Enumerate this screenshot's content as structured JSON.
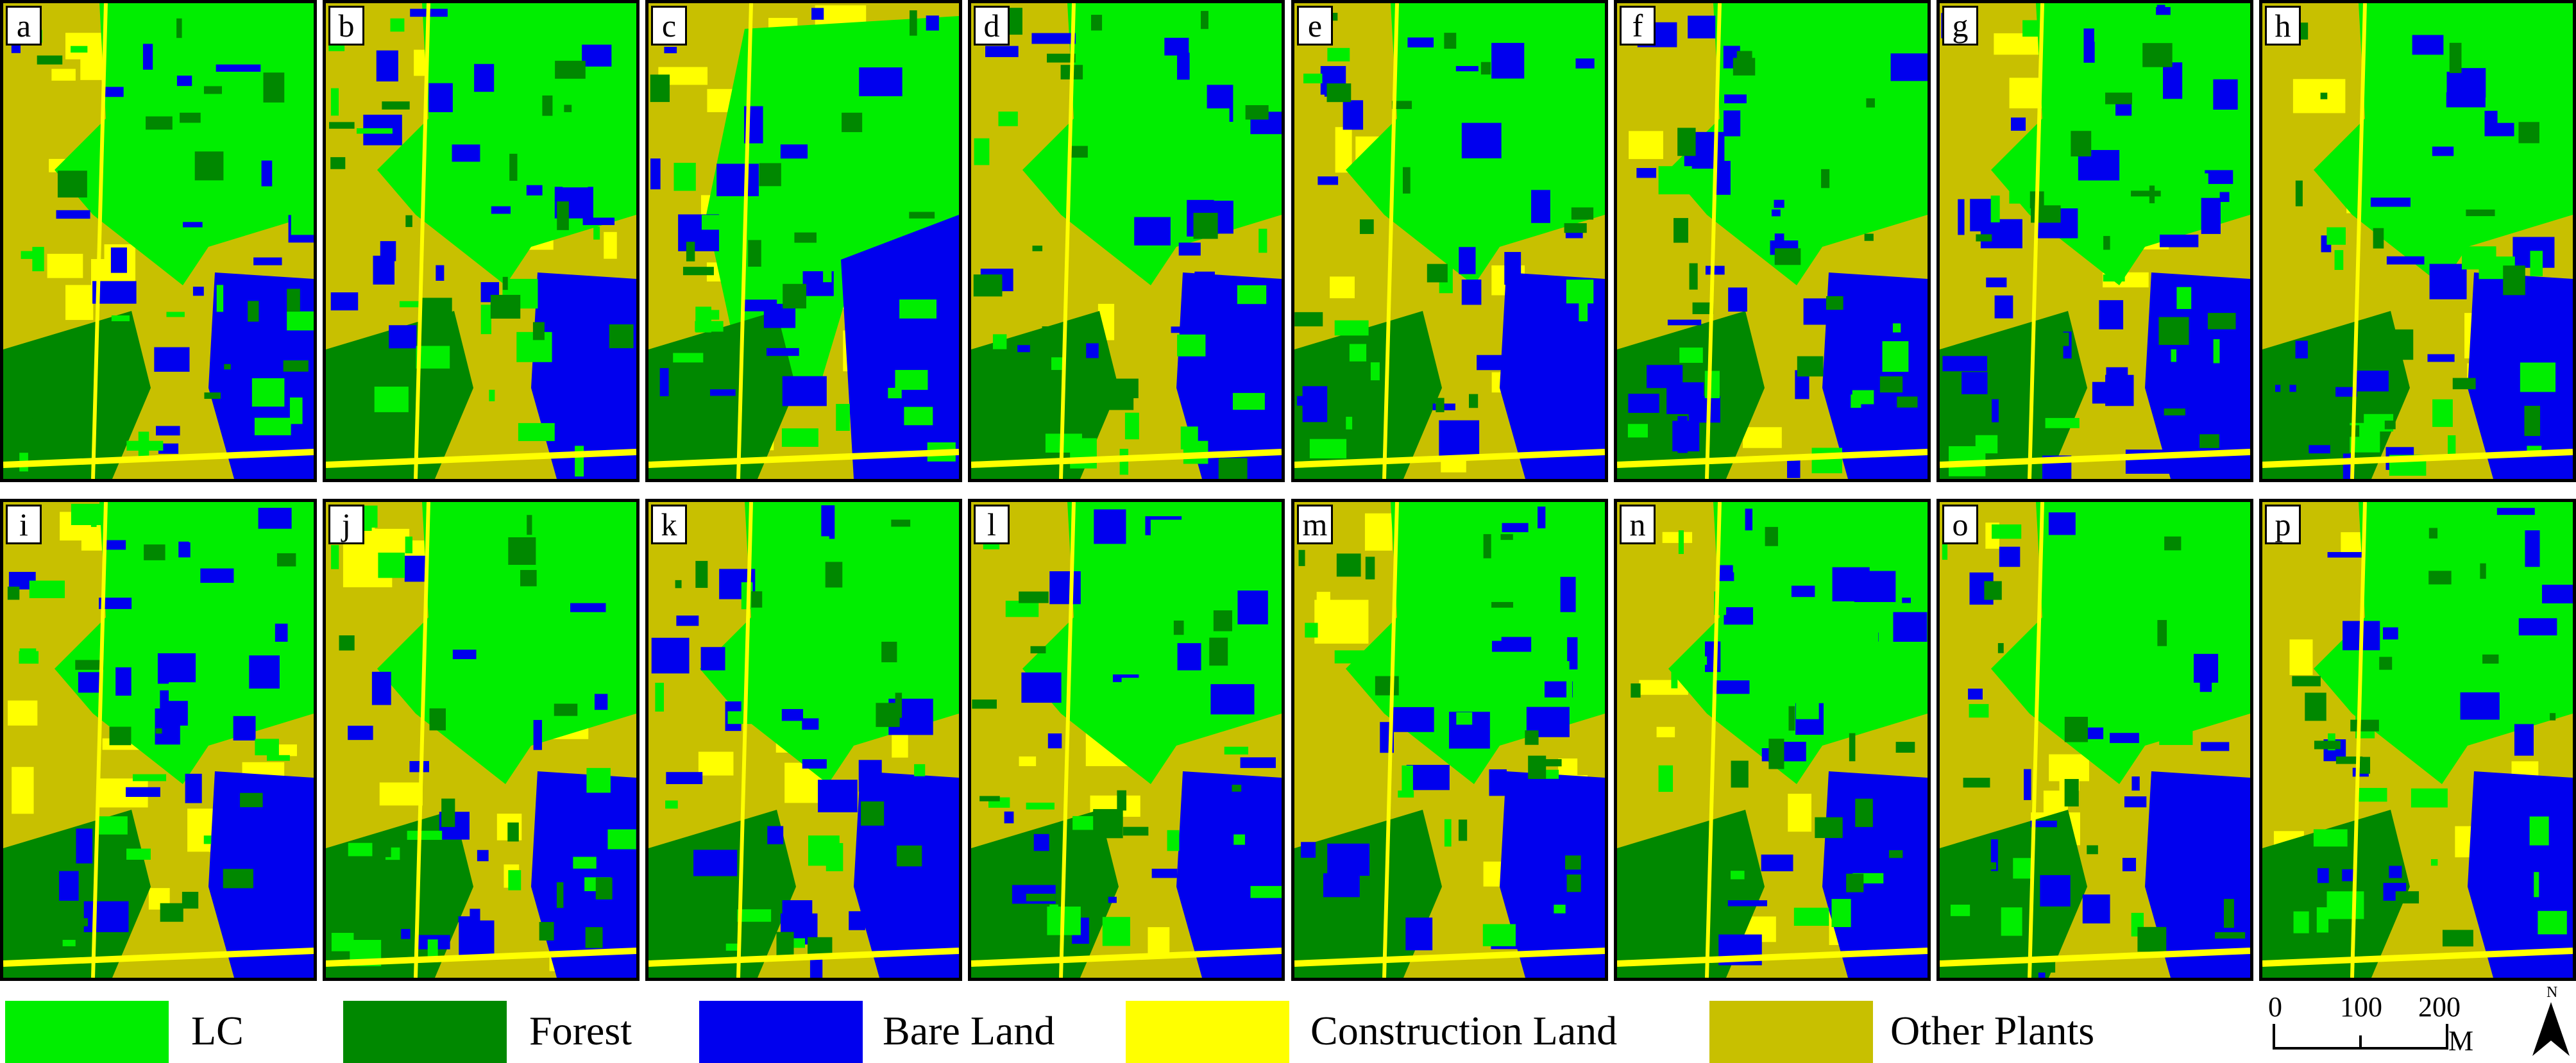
{
  "panels": [
    {
      "label": "a",
      "variant": 0
    },
    {
      "label": "b",
      "variant": 1
    },
    {
      "label": "c",
      "variant": 2
    },
    {
      "label": "d",
      "variant": 3
    },
    {
      "label": "e",
      "variant": 4
    },
    {
      "label": "f",
      "variant": 5
    },
    {
      "label": "g",
      "variant": 6
    },
    {
      "label": "h",
      "variant": 7
    },
    {
      "label": "i",
      "variant": 8
    },
    {
      "label": "j",
      "variant": 9
    },
    {
      "label": "k",
      "variant": 10
    },
    {
      "label": "l",
      "variant": 11
    },
    {
      "label": "m",
      "variant": 12
    },
    {
      "label": "n",
      "variant": 13
    },
    {
      "label": "o",
      "variant": 14
    },
    {
      "label": "p",
      "variant": 15
    }
  ],
  "legend": [
    {
      "label": "LC",
      "color": "#00ee00"
    },
    {
      "label": "Forest",
      "color": "#008800"
    },
    {
      "label": "Bare Land",
      "color": "#0000ee"
    },
    {
      "label": "Construction Land",
      "color": "#ffff00"
    },
    {
      "label": "Other Plants",
      "color": "#c8c000"
    }
  ],
  "scalebar": {
    "ticks": [
      "0",
      "100",
      "200"
    ],
    "unit": "M"
  },
  "north_arrow": {
    "label": "N"
  }
}
